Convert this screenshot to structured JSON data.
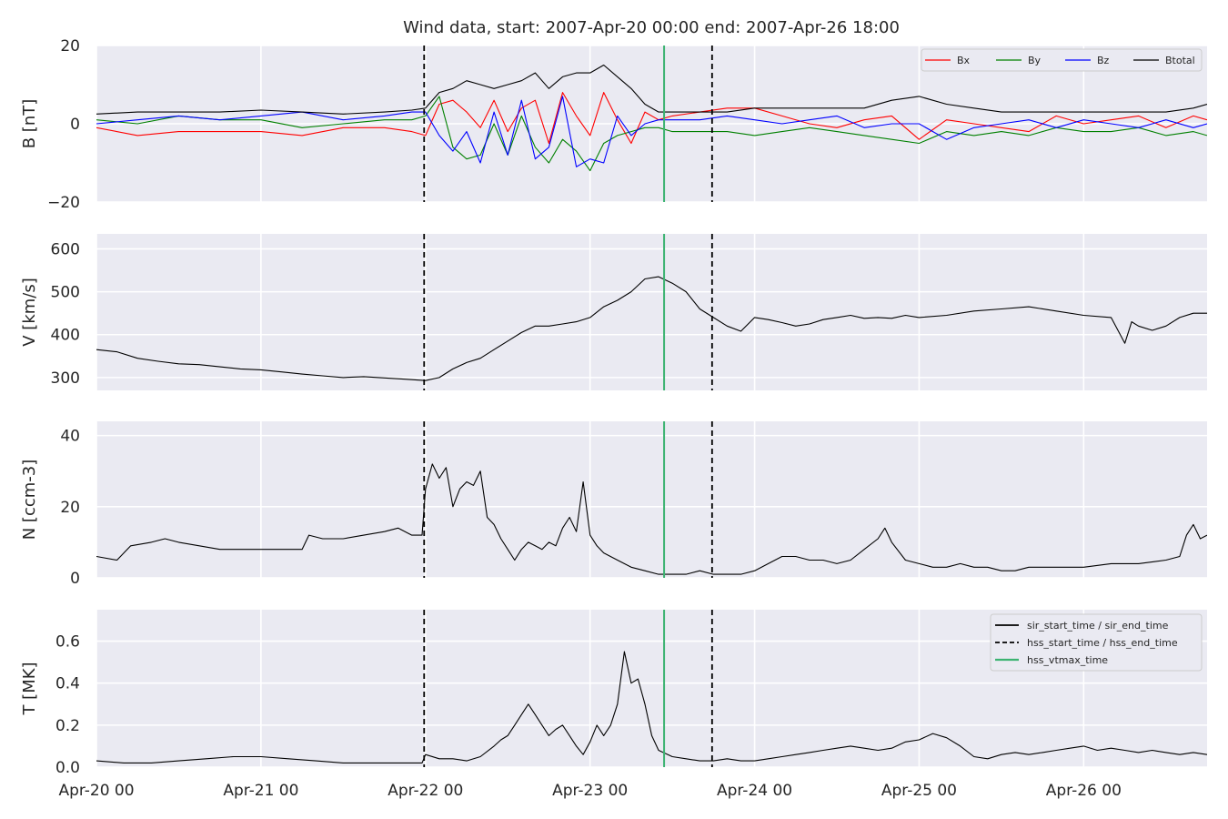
{
  "chart_data": {
    "type": "line",
    "title": "Wind data, start: 2007-Apr-20 00:00  end: 2007-Apr-26 18:00",
    "x_unit": "hours since 2007-Apr-20 00:00",
    "xlim": [
      0,
      162
    ],
    "x_tick_values": [
      0,
      24,
      48,
      72,
      96,
      120,
      144
    ],
    "x_tick_labels": [
      "Apr-20 00",
      "Apr-21 00",
      "Apr-22 00",
      "Apr-23 00",
      "Apr-24 00",
      "Apr-25 00",
      "Apr-26 00"
    ],
    "markers": [
      {
        "name": "hss_start_time",
        "x": 47.8,
        "style": "dashed",
        "color": "#000000"
      },
      {
        "name": "hss_vtmax_time",
        "x": 82.8,
        "style": "solid",
        "color": "#3cb371"
      },
      {
        "name": "hss_end_time",
        "x": 89.8,
        "style": "dashed",
        "color": "#000000"
      }
    ],
    "panels": [
      {
        "ylabel": "B [nT]",
        "ylim": [
          -20,
          20
        ],
        "yticks": [
          -20,
          0,
          20
        ],
        "ytick_labels": [
          "−20",
          "0",
          "20"
        ],
        "legend": "top-right",
        "series": [
          {
            "name": "Bx",
            "color": "#ff0000",
            "x": [
              0,
              6,
              12,
              18,
              24,
              30,
              36,
              42,
              46,
              48,
              50,
              52,
              54,
              56,
              58,
              60,
              62,
              64,
              66,
              68,
              70,
              72,
              74,
              76,
              78,
              80,
              82,
              84,
              88,
              92,
              96,
              100,
              104,
              108,
              112,
              116,
              120,
              124,
              128,
              132,
              136,
              140,
              144,
              148,
              152,
              156,
              160,
              162
            ],
            "y": [
              -1,
              -3,
              -2,
              -2,
              -2,
              -3,
              -1,
              -1,
              -2,
              -3,
              5,
              6,
              3,
              -1,
              6,
              -2,
              4,
              6,
              -5,
              8,
              2,
              -3,
              8,
              1,
              -5,
              3,
              1,
              2,
              3,
              4,
              4,
              2,
              0,
              -1,
              1,
              2,
              -4,
              1,
              0,
              -1,
              -2,
              2,
              0,
              1,
              2,
              -1,
              2,
              1
            ]
          },
          {
            "name": "By",
            "color": "#008000",
            "x": [
              0,
              6,
              12,
              18,
              24,
              30,
              36,
              42,
              46,
              48,
              50,
              52,
              54,
              56,
              58,
              60,
              62,
              64,
              66,
              68,
              70,
              72,
              74,
              76,
              78,
              80,
              82,
              84,
              88,
              92,
              96,
              100,
              104,
              108,
              112,
              116,
              120,
              124,
              128,
              132,
              136,
              140,
              144,
              148,
              152,
              156,
              160,
              162
            ],
            "y": [
              1,
              0,
              2,
              1,
              1,
              -1,
              0,
              1,
              1,
              2,
              7,
              -6,
              -9,
              -8,
              0,
              -8,
              2,
              -6,
              -10,
              -4,
              -7,
              -12,
              -5,
              -3,
              -2,
              -1,
              -1,
              -2,
              -2,
              -2,
              -3,
              -2,
              -1,
              -2,
              -3,
              -4,
              -5,
              -2,
              -3,
              -2,
              -3,
              -1,
              -2,
              -2,
              -1,
              -3,
              -2,
              -3
            ]
          },
          {
            "name": "Bz",
            "color": "#0000ff",
            "x": [
              0,
              6,
              12,
              18,
              24,
              30,
              36,
              42,
              46,
              48,
              50,
              52,
              54,
              56,
              58,
              60,
              62,
              64,
              66,
              68,
              70,
              72,
              74,
              76,
              78,
              80,
              82,
              84,
              88,
              92,
              96,
              100,
              104,
              108,
              112,
              116,
              120,
              124,
              128,
              132,
              136,
              140,
              144,
              148,
              152,
              156,
              160,
              162
            ],
            "y": [
              0,
              1,
              2,
              1,
              2,
              3,
              1,
              2,
              3,
              3,
              -3,
              -7,
              -2,
              -10,
              3,
              -8,
              6,
              -9,
              -6,
              7,
              -11,
              -9,
              -10,
              2,
              -3,
              0,
              1,
              1,
              1,
              2,
              1,
              0,
              1,
              2,
              -1,
              0,
              0,
              -4,
              -1,
              0,
              1,
              -1,
              1,
              0,
              -1,
              1,
              -1,
              0
            ]
          },
          {
            "name": "Btotal",
            "color": "#000000",
            "x": [
              0,
              6,
              12,
              18,
              24,
              30,
              36,
              42,
              46,
              48,
              50,
              52,
              54,
              56,
              58,
              60,
              62,
              64,
              66,
              68,
              70,
              72,
              74,
              76,
              78,
              80,
              82,
              84,
              88,
              92,
              96,
              100,
              104,
              108,
              112,
              116,
              120,
              124,
              128,
              132,
              136,
              140,
              144,
              148,
              152,
              156,
              160,
              162
            ],
            "y": [
              2.5,
              3,
              3,
              3,
              3.5,
              3,
              2.5,
              3,
              3.5,
              4,
              8,
              9,
              11,
              10,
              9,
              10,
              11,
              13,
              9,
              12,
              13,
              13,
              15,
              12,
              9,
              5,
              3,
              3,
              3,
              3,
              4,
              4,
              4,
              4,
              4,
              6,
              7,
              5,
              4,
              3,
              3,
              3,
              3,
              3,
              3,
              3,
              4,
              5
            ]
          }
        ]
      },
      {
        "ylabel": "V [km/s]",
        "ylim": [
          270,
          635
        ],
        "yticks": [
          300,
          400,
          500,
          600
        ],
        "ytick_labels": [
          "300",
          "400",
          "500",
          "600"
        ],
        "series": [
          {
            "name": "",
            "color": "#000000",
            "x": [
              0,
              3,
              6,
              9,
              12,
              15,
              18,
              21,
              24,
              27,
              30,
              33,
              36,
              39,
              42,
              45,
              48,
              50,
              52,
              54,
              56,
              58,
              60,
              62,
              64,
              66,
              68,
              70,
              72,
              74,
              76,
              78,
              80,
              82,
              84,
              86,
              88,
              90,
              92,
              94,
              96,
              98,
              100,
              102,
              104,
              106,
              108,
              110,
              112,
              114,
              116,
              118,
              120,
              124,
              128,
              132,
              136,
              140,
              144,
              148,
              150,
              151,
              152,
              154,
              156,
              158,
              160,
              162
            ],
            "y": [
              365,
              360,
              345,
              338,
              332,
              330,
              325,
              320,
              318,
              313,
              308,
              304,
              300,
              302,
              299,
              296,
              293,
              300,
              320,
              335,
              345,
              365,
              385,
              405,
              420,
              420,
              425,
              430,
              440,
              465,
              480,
              500,
              530,
              535,
              520,
              500,
              460,
              440,
              420,
              408,
              440,
              435,
              428,
              420,
              425,
              435,
              440,
              445,
              438,
              440,
              438,
              445,
              440,
              445,
              455,
              460,
              465,
              455,
              445,
              440,
              380,
              430,
              420,
              410,
              420,
              440,
              450,
              450
            ]
          }
        ]
      },
      {
        "ylabel": "N [ccm-3]",
        "ylim": [
          0,
          44
        ],
        "yticks": [
          0,
          20,
          40
        ],
        "ytick_labels": [
          "0",
          "20",
          "40"
        ],
        "series": [
          {
            "name": "",
            "color": "#000000",
            "x": [
              0,
              3,
              5,
              8,
              10,
              12,
              15,
              18,
              21,
              24,
              27,
              30,
              31,
              33,
              36,
              39,
              42,
              44,
              46,
              47.5,
              48,
              49,
              50,
              51,
              52,
              53,
              54,
              55,
              56,
              57,
              58,
              59,
              60,
              61,
              62,
              63,
              64,
              65,
              66,
              67,
              68,
              69,
              70,
              71,
              72,
              73,
              74,
              76,
              78,
              80,
              82,
              84,
              86,
              88,
              90,
              92,
              94,
              96,
              98,
              100,
              102,
              104,
              106,
              108,
              110,
              112,
              114,
              115,
              116,
              118,
              120,
              122,
              124,
              126,
              128,
              130,
              132,
              134,
              136,
              140,
              144,
              148,
              152,
              156,
              158,
              159,
              160,
              161,
              162
            ],
            "y": [
              6,
              5,
              9,
              10,
              11,
              10,
              9,
              8,
              8,
              8,
              8,
              8,
              12,
              11,
              11,
              12,
              13,
              14,
              12,
              12,
              25,
              32,
              28,
              31,
              20,
              25,
              27,
              26,
              30,
              17,
              15,
              11,
              8,
              5,
              8,
              10,
              9,
              8,
              10,
              9,
              14,
              17,
              13,
              27,
              12,
              9,
              7,
              5,
              3,
              2,
              1,
              1,
              1,
              2,
              1,
              1,
              1,
              2,
              4,
              6,
              6,
              5,
              5,
              4,
              5,
              8,
              11,
              14,
              10,
              5,
              4,
              3,
              3,
              4,
              3,
              3,
              2,
              2,
              3,
              3,
              3,
              4,
              4,
              5,
              6,
              12,
              15,
              11,
              12
            ]
          }
        ]
      },
      {
        "ylabel": "T [MK]",
        "ylim": [
          0,
          0.75
        ],
        "yticks": [
          0.0,
          0.2,
          0.4,
          0.6
        ],
        "ytick_labels": [
          "0.0",
          "0.2",
          "0.4",
          "0.6"
        ],
        "legend": "top-right",
        "series": [
          {
            "name": "",
            "color": "#000000",
            "x": [
              0,
              4,
              8,
              12,
              16,
              20,
              24,
              28,
              32,
              36,
              40,
              44,
              47.5,
              48,
              50,
              52,
              54,
              56,
              58,
              59,
              60,
              61,
              62,
              63,
              64,
              65,
              66,
              67,
              68,
              69,
              70,
              71,
              72,
              73,
              74,
              75,
              76,
              77,
              78,
              79,
              80,
              81,
              82,
              84,
              86,
              88,
              90,
              92,
              94,
              96,
              98,
              100,
              102,
              104,
              106,
              108,
              110,
              112,
              114,
              116,
              118,
              120,
              122,
              124,
              126,
              128,
              130,
              132,
              134,
              136,
              138,
              140,
              142,
              144,
              146,
              148,
              150,
              152,
              154,
              156,
              158,
              160,
              162
            ],
            "y": [
              0.03,
              0.02,
              0.02,
              0.03,
              0.04,
              0.05,
              0.05,
              0.04,
              0.03,
              0.02,
              0.02,
              0.02,
              0.02,
              0.06,
              0.04,
              0.04,
              0.03,
              0.05,
              0.1,
              0.13,
              0.15,
              0.2,
              0.25,
              0.3,
              0.25,
              0.2,
              0.15,
              0.18,
              0.2,
              0.15,
              0.1,
              0.06,
              0.12,
              0.2,
              0.15,
              0.2,
              0.3,
              0.55,
              0.4,
              0.42,
              0.3,
              0.15,
              0.08,
              0.05,
              0.04,
              0.03,
              0.03,
              0.04,
              0.03,
              0.03,
              0.04,
              0.05,
              0.06,
              0.07,
              0.08,
              0.09,
              0.1,
              0.09,
              0.08,
              0.09,
              0.12,
              0.13,
              0.16,
              0.14,
              0.1,
              0.05,
              0.04,
              0.06,
              0.07,
              0.06,
              0.07,
              0.08,
              0.09,
              0.1,
              0.08,
              0.09,
              0.08,
              0.07,
              0.08,
              0.07,
              0.06,
              0.07,
              0.06
            ]
          }
        ]
      }
    ],
    "top_legend": {
      "position": "top-right",
      "entries": [
        {
          "label": "Bx",
          "color": "#ff0000"
        },
        {
          "label": "By",
          "color": "#008000"
        },
        {
          "label": "Bz",
          "color": "#0000ff"
        },
        {
          "label": "Btotal",
          "color": "#000000"
        }
      ]
    },
    "bottom_legend": {
      "position": "top-right",
      "entries": [
        {
          "label": "sir_start_time / sir_end_time",
          "style": "solid",
          "color": "#000000"
        },
        {
          "label": "hss_start_time / hss_end_time",
          "style": "dashed",
          "color": "#000000"
        },
        {
          "label": "hss_vtmax_time",
          "style": "solid",
          "color": "#3cb371"
        }
      ]
    },
    "colors": {
      "panel_background": "#eaeaf2",
      "grid": "#ffffff",
      "text": "#262626"
    }
  }
}
